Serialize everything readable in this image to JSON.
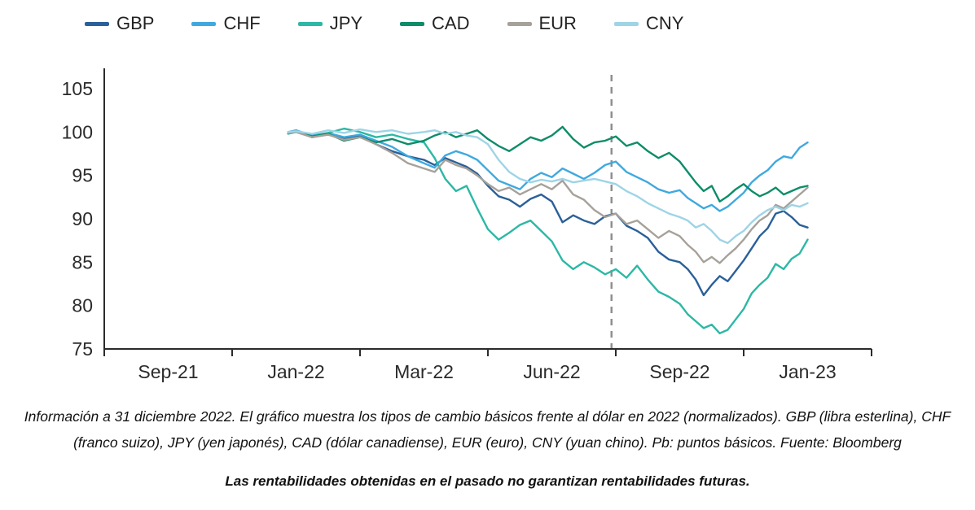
{
  "caption": {
    "text": "Información a 31 diciembre 2022. El gráfico muestra los tipos de cambio básicos frente al dólar en 2022 (normalizados). GBP (libra esterlina), CHF (franco suizo), JPY (yen japonés), CAD (dólar canadiense), EUR (euro), CNY (yuan chino). Pb: puntos básicos. Fuente: Bloomberg"
  },
  "disclaimer": {
    "text": "Las rentabilidades obtenidas en el pasado no garantizan rentabilidades futuras."
  },
  "chart_data": {
    "type": "line",
    "title": "",
    "xlabel": "",
    "ylabel": "",
    "ylim": [
      75,
      105
    ],
    "yticks": [
      75,
      80,
      85,
      90,
      95,
      100,
      105
    ],
    "grid": false,
    "legend_position": "top-left",
    "x_unit": "months_since_sep_2021",
    "xtick_months": [
      0,
      4,
      6,
      9,
      12,
      16
    ],
    "xtick_labels": [
      "Sep-21",
      "Jan-22",
      "Mar-22",
      "Jun-22",
      "Sep-22",
      "Jan-23"
    ],
    "dashed_vline_month": 10.4,
    "axis_color": "#2b2b2b",
    "vline_color": "#8f8f8f",
    "series": [
      {
        "name": "GBP",
        "color": "#2a6099",
        "points": [
          [
            3.75,
            99.9
          ],
          [
            4.0,
            100.1
          ],
          [
            4.25,
            99.4
          ],
          [
            4.5,
            99.7
          ],
          [
            4.75,
            99.2
          ],
          [
            5.0,
            99.6
          ],
          [
            5.25,
            98.6
          ],
          [
            5.5,
            97.8
          ],
          [
            5.75,
            97.2
          ],
          [
            6.0,
            96.8
          ],
          [
            6.25,
            96.2
          ],
          [
            6.5,
            97.0
          ],
          [
            6.75,
            96.5
          ],
          [
            7.0,
            96.0
          ],
          [
            7.25,
            95.2
          ],
          [
            7.5,
            93.8
          ],
          [
            7.75,
            92.6
          ],
          [
            8.0,
            92.2
          ],
          [
            8.25,
            91.4
          ],
          [
            8.5,
            92.3
          ],
          [
            8.75,
            92.8
          ],
          [
            9.0,
            92.0
          ],
          [
            9.25,
            89.6
          ],
          [
            9.5,
            90.4
          ],
          [
            9.75,
            89.8
          ],
          [
            10.0,
            89.4
          ],
          [
            10.25,
            90.3
          ],
          [
            10.5,
            90.6
          ],
          [
            10.75,
            89.2
          ],
          [
            11.0,
            88.6
          ],
          [
            11.25,
            87.8
          ],
          [
            11.5,
            86.2
          ],
          [
            11.75,
            85.3
          ],
          [
            12.0,
            85.0
          ],
          [
            12.25,
            84.2
          ],
          [
            12.5,
            83.0
          ],
          [
            12.75,
            81.2
          ],
          [
            13.0,
            82.4
          ],
          [
            13.25,
            83.4
          ],
          [
            13.5,
            82.8
          ],
          [
            13.75,
            84.0
          ],
          [
            14.0,
            85.2
          ],
          [
            14.25,
            86.6
          ],
          [
            14.5,
            88.0
          ],
          [
            14.75,
            88.9
          ],
          [
            15.0,
            90.6
          ],
          [
            15.25,
            90.9
          ],
          [
            15.5,
            90.2
          ],
          [
            15.75,
            89.3
          ],
          [
            16.0,
            89.0
          ]
        ]
      },
      {
        "name": "CHF",
        "color": "#3fa9df",
        "points": [
          [
            3.75,
            100.0
          ],
          [
            4.0,
            100.2
          ],
          [
            4.25,
            99.6
          ],
          [
            4.5,
            99.9
          ],
          [
            4.75,
            99.4
          ],
          [
            5.0,
            99.7
          ],
          [
            5.25,
            99.0
          ],
          [
            5.5,
            98.3
          ],
          [
            5.75,
            97.2
          ],
          [
            6.0,
            96.4
          ],
          [
            6.25,
            95.9
          ],
          [
            6.5,
            97.3
          ],
          [
            6.75,
            97.8
          ],
          [
            7.0,
            97.4
          ],
          [
            7.25,
            96.8
          ],
          [
            7.5,
            95.6
          ],
          [
            7.75,
            94.4
          ],
          [
            8.0,
            93.9
          ],
          [
            8.25,
            93.4
          ],
          [
            8.5,
            94.6
          ],
          [
            8.75,
            95.3
          ],
          [
            9.0,
            94.8
          ],
          [
            9.25,
            95.8
          ],
          [
            9.5,
            95.2
          ],
          [
            9.75,
            94.6
          ],
          [
            10.0,
            95.3
          ],
          [
            10.25,
            96.2
          ],
          [
            10.5,
            96.6
          ],
          [
            10.75,
            95.4
          ],
          [
            11.0,
            94.8
          ],
          [
            11.25,
            94.2
          ],
          [
            11.5,
            93.4
          ],
          [
            11.75,
            93.0
          ],
          [
            12.0,
            93.3
          ],
          [
            12.25,
            92.4
          ],
          [
            12.5,
            91.8
          ],
          [
            12.75,
            91.2
          ],
          [
            13.0,
            91.6
          ],
          [
            13.25,
            90.9
          ],
          [
            13.5,
            91.4
          ],
          [
            13.75,
            92.2
          ],
          [
            14.0,
            93.0
          ],
          [
            14.25,
            94.2
          ],
          [
            14.5,
            95.0
          ],
          [
            14.75,
            95.6
          ],
          [
            15.0,
            96.6
          ],
          [
            15.25,
            97.2
          ],
          [
            15.5,
            97.0
          ],
          [
            15.75,
            98.2
          ],
          [
            16.0,
            98.8
          ]
        ]
      },
      {
        "name": "JPY",
        "color": "#2cb8a5",
        "points": [
          [
            3.75,
            99.8
          ],
          [
            4.0,
            100.0
          ],
          [
            4.25,
            99.5
          ],
          [
            4.5,
            99.9
          ],
          [
            4.75,
            100.4
          ],
          [
            5.0,
            100.0
          ],
          [
            5.25,
            99.4
          ],
          [
            5.5,
            99.7
          ],
          [
            5.75,
            99.2
          ],
          [
            6.0,
            98.8
          ],
          [
            6.25,
            97.0
          ],
          [
            6.5,
            94.6
          ],
          [
            6.75,
            93.2
          ],
          [
            7.0,
            93.8
          ],
          [
            7.25,
            91.2
          ],
          [
            7.5,
            88.8
          ],
          [
            7.75,
            87.6
          ],
          [
            8.0,
            88.4
          ],
          [
            8.25,
            89.3
          ],
          [
            8.5,
            89.8
          ],
          [
            8.75,
            88.6
          ],
          [
            9.0,
            87.4
          ],
          [
            9.25,
            85.2
          ],
          [
            9.5,
            84.2
          ],
          [
            9.75,
            85.0
          ],
          [
            10.0,
            84.4
          ],
          [
            10.25,
            83.6
          ],
          [
            10.5,
            84.2
          ],
          [
            10.75,
            83.2
          ],
          [
            11.0,
            84.6
          ],
          [
            11.25,
            83.0
          ],
          [
            11.5,
            81.6
          ],
          [
            11.75,
            81.0
          ],
          [
            12.0,
            80.2
          ],
          [
            12.25,
            79.0
          ],
          [
            12.5,
            78.2
          ],
          [
            12.75,
            77.4
          ],
          [
            13.0,
            77.8
          ],
          [
            13.25,
            76.8
          ],
          [
            13.5,
            77.2
          ],
          [
            13.75,
            78.4
          ],
          [
            14.0,
            79.6
          ],
          [
            14.25,
            81.4
          ],
          [
            14.5,
            82.4
          ],
          [
            14.75,
            83.2
          ],
          [
            15.0,
            84.8
          ],
          [
            15.25,
            84.2
          ],
          [
            15.5,
            85.4
          ],
          [
            15.75,
            86.0
          ],
          [
            16.0,
            87.6
          ]
        ]
      },
      {
        "name": "CAD",
        "color": "#0e8c68",
        "points": [
          [
            3.75,
            99.9
          ],
          [
            4.0,
            100.1
          ],
          [
            4.25,
            99.5
          ],
          [
            4.5,
            99.8
          ],
          [
            4.75,
            99.0
          ],
          [
            5.0,
            99.4
          ],
          [
            5.25,
            98.8
          ],
          [
            5.5,
            99.2
          ],
          [
            5.75,
            98.6
          ],
          [
            6.0,
            99.0
          ],
          [
            6.25,
            99.6
          ],
          [
            6.5,
            100.0
          ],
          [
            6.75,
            99.4
          ],
          [
            7.0,
            99.8
          ],
          [
            7.25,
            100.2
          ],
          [
            7.5,
            99.2
          ],
          [
            7.75,
            98.4
          ],
          [
            8.0,
            97.8
          ],
          [
            8.25,
            98.6
          ],
          [
            8.5,
            99.4
          ],
          [
            8.75,
            99.0
          ],
          [
            9.0,
            99.6
          ],
          [
            9.25,
            100.6
          ],
          [
            9.5,
            99.2
          ],
          [
            9.75,
            98.2
          ],
          [
            10.0,
            98.8
          ],
          [
            10.25,
            99.0
          ],
          [
            10.5,
            99.5
          ],
          [
            10.75,
            98.4
          ],
          [
            11.0,
            98.8
          ],
          [
            11.25,
            97.8
          ],
          [
            11.5,
            97.0
          ],
          [
            11.75,
            97.6
          ],
          [
            12.0,
            96.6
          ],
          [
            12.25,
            95.4
          ],
          [
            12.5,
            94.2
          ],
          [
            12.75,
            93.2
          ],
          [
            13.0,
            93.8
          ],
          [
            13.25,
            92.0
          ],
          [
            13.5,
            92.6
          ],
          [
            13.75,
            93.4
          ],
          [
            14.0,
            94.0
          ],
          [
            14.25,
            93.2
          ],
          [
            14.5,
            92.6
          ],
          [
            14.75,
            93.0
          ],
          [
            15.0,
            93.6
          ],
          [
            15.25,
            92.8
          ],
          [
            15.5,
            93.2
          ],
          [
            15.75,
            93.6
          ],
          [
            16.0,
            93.8
          ]
        ]
      },
      {
        "name": "EUR",
        "color": "#a6a19a",
        "points": [
          [
            3.75,
            99.9
          ],
          [
            4.0,
            100.0
          ],
          [
            4.25,
            99.4
          ],
          [
            4.5,
            99.7
          ],
          [
            4.75,
            99.1
          ],
          [
            5.0,
            99.4
          ],
          [
            5.25,
            98.6
          ],
          [
            5.5,
            97.6
          ],
          [
            5.75,
            96.4
          ],
          [
            6.0,
            95.8
          ],
          [
            6.25,
            95.4
          ],
          [
            6.5,
            96.8
          ],
          [
            6.75,
            96.2
          ],
          [
            7.0,
            95.8
          ],
          [
            7.25,
            95.0
          ],
          [
            7.5,
            94.0
          ],
          [
            7.75,
            93.2
          ],
          [
            8.0,
            93.6
          ],
          [
            8.25,
            92.8
          ],
          [
            8.5,
            93.4
          ],
          [
            8.75,
            94.0
          ],
          [
            9.0,
            93.4
          ],
          [
            9.25,
            94.4
          ],
          [
            9.5,
            92.8
          ],
          [
            9.75,
            92.2
          ],
          [
            10.0,
            91.0
          ],
          [
            10.25,
            90.2
          ],
          [
            10.5,
            90.6
          ],
          [
            10.75,
            89.4
          ],
          [
            11.0,
            89.8
          ],
          [
            11.25,
            88.8
          ],
          [
            11.5,
            87.8
          ],
          [
            11.75,
            88.6
          ],
          [
            12.0,
            88.0
          ],
          [
            12.25,
            87.0
          ],
          [
            12.5,
            86.2
          ],
          [
            12.75,
            85.0
          ],
          [
            13.0,
            85.6
          ],
          [
            13.25,
            84.9
          ],
          [
            13.5,
            85.8
          ],
          [
            13.75,
            86.6
          ],
          [
            14.0,
            87.6
          ],
          [
            14.25,
            88.8
          ],
          [
            14.5,
            89.8
          ],
          [
            14.75,
            90.4
          ],
          [
            15.0,
            91.6
          ],
          [
            15.25,
            91.2
          ],
          [
            15.5,
            92.0
          ],
          [
            15.75,
            92.8
          ],
          [
            16.0,
            93.6
          ]
        ]
      },
      {
        "name": "CNY",
        "color": "#9ed4e6",
        "points": [
          [
            3.75,
            100.0
          ],
          [
            4.0,
            100.1
          ],
          [
            4.25,
            99.8
          ],
          [
            4.5,
            100.2
          ],
          [
            4.75,
            99.9
          ],
          [
            5.0,
            100.3
          ],
          [
            5.25,
            100.0
          ],
          [
            5.5,
            100.2
          ],
          [
            5.75,
            99.8
          ],
          [
            6.0,
            100.0
          ],
          [
            6.25,
            100.2
          ],
          [
            6.5,
            99.8
          ],
          [
            6.75,
            100.0
          ],
          [
            7.0,
            99.6
          ],
          [
            7.25,
            99.4
          ],
          [
            7.5,
            98.6
          ],
          [
            7.75,
            96.8
          ],
          [
            8.0,
            95.4
          ],
          [
            8.25,
            94.6
          ],
          [
            8.5,
            94.2
          ],
          [
            8.75,
            94.5
          ],
          [
            9.0,
            94.3
          ],
          [
            9.25,
            94.6
          ],
          [
            9.5,
            94.2
          ],
          [
            9.75,
            94.4
          ],
          [
            10.0,
            94.6
          ],
          [
            10.25,
            94.3
          ],
          [
            10.5,
            94.0
          ],
          [
            10.75,
            93.2
          ],
          [
            11.0,
            92.6
          ],
          [
            11.25,
            91.8
          ],
          [
            11.5,
            91.2
          ],
          [
            11.75,
            90.6
          ],
          [
            12.0,
            90.2
          ],
          [
            12.25,
            89.8
          ],
          [
            12.5,
            89.0
          ],
          [
            12.75,
            89.4
          ],
          [
            13.0,
            88.6
          ],
          [
            13.25,
            87.6
          ],
          [
            13.5,
            87.2
          ],
          [
            13.75,
            88.0
          ],
          [
            14.0,
            88.6
          ],
          [
            14.25,
            89.6
          ],
          [
            14.5,
            90.4
          ],
          [
            14.75,
            91.0
          ],
          [
            15.0,
            91.4
          ],
          [
            15.25,
            91.0
          ],
          [
            15.5,
            91.6
          ],
          [
            15.75,
            91.4
          ],
          [
            16.0,
            91.8
          ]
        ]
      }
    ]
  }
}
